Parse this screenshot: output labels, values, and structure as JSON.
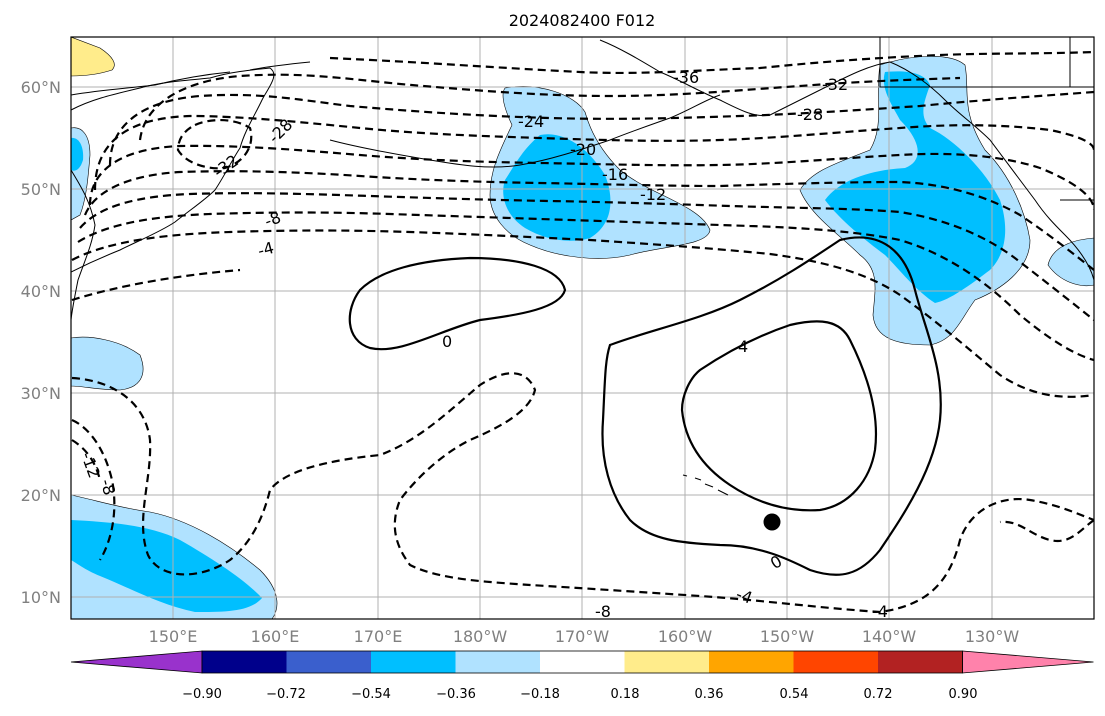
{
  "title": "2024082400 F012",
  "lat_labels": [
    "60°N",
    "50°N",
    "40°N",
    "30°N",
    "20°N",
    "10°N"
  ],
  "lon_labels": [
    "150°E",
    "160°E",
    "170°E",
    "180°W",
    "170°W",
    "160°W",
    "150°W",
    "140°W",
    "130°W"
  ],
  "colorbar": {
    "colors": [
      "#9932CC",
      "#00008B",
      "#3A5FCD",
      "#00BFFF",
      "#B0E2FF",
      "#FFFFFF",
      "#FFEC8B",
      "#FFA500",
      "#FF4500",
      "#B22222",
      "#FF82AB"
    ],
    "tick_labels": [
      "−0.90",
      "−0.72",
      "−0.54",
      "−0.36",
      "−0.18",
      "0.18",
      "0.36",
      "0.54",
      "0.72",
      "0.90"
    ],
    "extend": "both"
  },
  "contour_labels": {
    "m36": "-36",
    "m32a": "-32",
    "m32b": "-32",
    "m28a": "-28",
    "m28b": "-28",
    "m24": "-24",
    "m20": "-20",
    "m16": "-16",
    "m12": "-12",
    "m8": "-8",
    "m4": "-4",
    "zero1": "0",
    "p4": "4",
    "zero2": "0",
    "m12w": "-12",
    "m8w": "-8",
    "m4s": "-4",
    "m8s": "-8",
    "m4se": "-4"
  },
  "marker": {
    "name": "black-dot",
    "lon": -151,
    "lat": 17.5
  },
  "map": {
    "lon_range": [
      140,
      240
    ],
    "lat_range": [
      8,
      65
    ],
    "projection": "PlateCarree",
    "grid": true
  }
}
